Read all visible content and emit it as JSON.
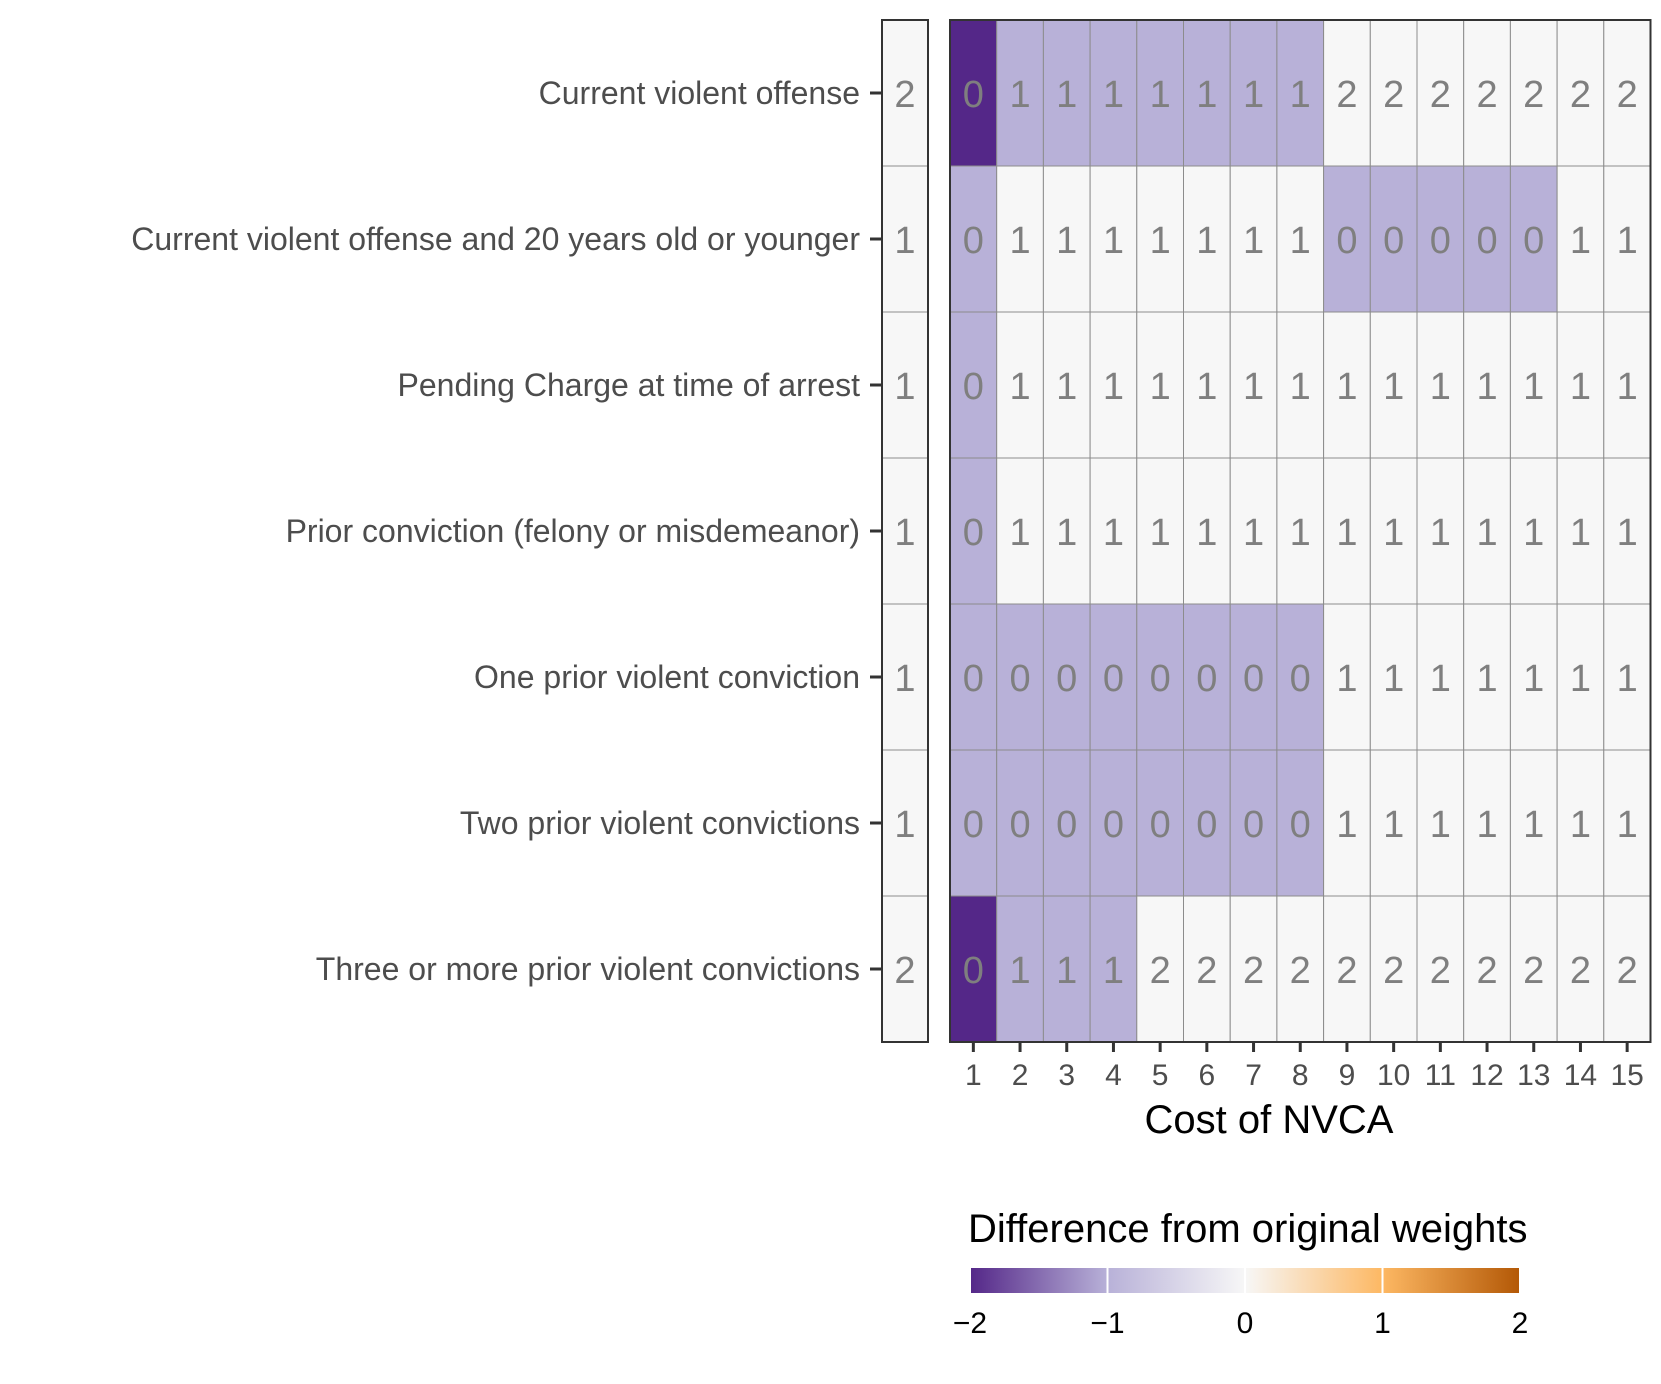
{
  "chart_data": {
    "type": "heatmap",
    "title": "",
    "xlabel": "Cost of NVCA",
    "ylabel": "",
    "rows": [
      "Current violent offense",
      "Current violent offense and 20 years old or younger",
      "Pending Charge at time of arrest",
      "Prior conviction (felony or misdemeanor)",
      "One prior violent conviction",
      "Two prior violent convictions",
      "Three or more prior violent convictions"
    ],
    "original_weights": [
      2,
      1,
      1,
      1,
      1,
      1,
      2
    ],
    "columns": [
      "1",
      "2",
      "3",
      "4",
      "5",
      "6",
      "7",
      "8",
      "9",
      "10",
      "11",
      "12",
      "13",
      "14",
      "15"
    ],
    "values": [
      [
        0,
        1,
        1,
        1,
        1,
        1,
        1,
        1,
        2,
        2,
        2,
        2,
        2,
        2,
        2
      ],
      [
        0,
        1,
        1,
        1,
        1,
        1,
        1,
        1,
        0,
        0,
        0,
        0,
        0,
        1,
        1
      ],
      [
        0,
        1,
        1,
        1,
        1,
        1,
        1,
        1,
        1,
        1,
        1,
        1,
        1,
        1,
        1
      ],
      [
        0,
        1,
        1,
        1,
        1,
        1,
        1,
        1,
        1,
        1,
        1,
        1,
        1,
        1,
        1
      ],
      [
        0,
        0,
        0,
        0,
        0,
        0,
        0,
        0,
        1,
        1,
        1,
        1,
        1,
        1,
        1
      ],
      [
        0,
        0,
        0,
        0,
        0,
        0,
        0,
        0,
        1,
        1,
        1,
        1,
        1,
        1,
        1
      ],
      [
        0,
        1,
        1,
        1,
        2,
        2,
        2,
        2,
        2,
        2,
        2,
        2,
        2,
        2,
        2
      ]
    ],
    "legend": {
      "title": "Difference from original weights",
      "ticks": [
        "−2",
        "−1",
        "0",
        "1",
        "2"
      ],
      "range": [
        -2,
        2
      ],
      "colors": {
        "-2": "#542788",
        "-1": "#b8b1d8",
        "0": "#f7f7f7",
        "1": "#fdb863",
        "2": "#b35806"
      }
    }
  }
}
